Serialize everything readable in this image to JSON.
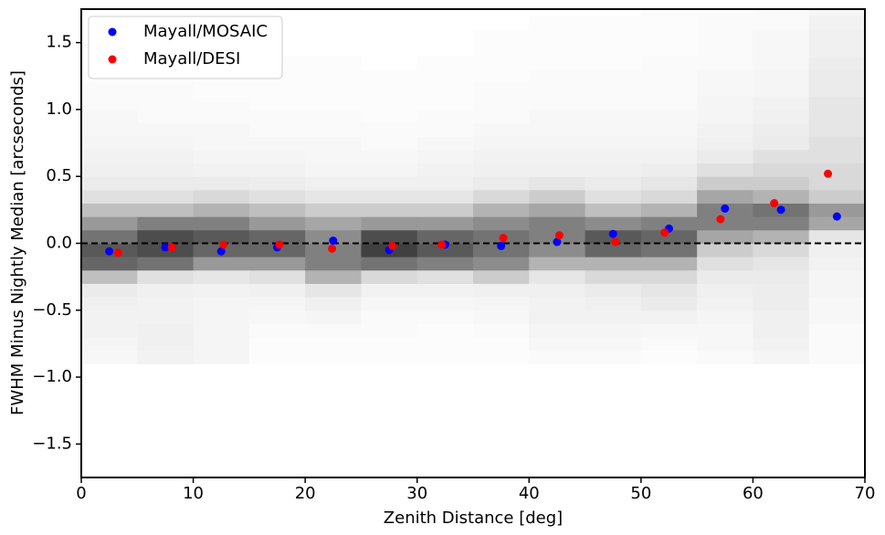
{
  "chart_data": {
    "type": "scatter",
    "xlabel": "Zenith Distance [deg]",
    "ylabel": "FWHM Minus Nightly Median [arcseconds]",
    "xlim": [
      0,
      70
    ],
    "ylim": [
      -1.75,
      1.75
    ],
    "xticks": [
      0,
      10,
      20,
      30,
      40,
      50,
      60,
      70
    ],
    "yticks": [
      {
        "value": -1.5,
        "label": "−1.5"
      },
      {
        "value": -1.0,
        "label": "−1.0"
      },
      {
        "value": -0.5,
        "label": "−0.5"
      },
      {
        "value": 0,
        "label": "0.0"
      },
      {
        "value": 0.5,
        "label": "0.5"
      },
      {
        "value": 1.0,
        "label": "1.0"
      },
      {
        "value": 1.5,
        "label": "1.5"
      }
    ],
    "legend": "upper left",
    "reference_line": 0,
    "series": [
      {
        "name": "Mayall/MOSAIC",
        "color": "#0000ff",
        "x": [
          2.5,
          7.5,
          12.5,
          17.5,
          22.5,
          27.5,
          32.5,
          37.5,
          42.5,
          47.5,
          52.5,
          57.5,
          62.5,
          67.5
        ],
        "values": [
          -0.06,
          -0.03,
          -0.06,
          -0.03,
          0.02,
          -0.05,
          -0.01,
          -0.02,
          0.01,
          0.07,
          0.11,
          0.26,
          0.25,
          0.2
        ]
      },
      {
        "name": "Mayall/DESI",
        "color": "#ff0000",
        "x": [
          3.3,
          8.1,
          12.7,
          17.7,
          22.4,
          27.8,
          32.2,
          37.7,
          42.7,
          47.7,
          52.1,
          57.1,
          61.9,
          66.7
        ],
        "values": [
          -0.07,
          -0.03,
          -0.01,
          -0.01,
          -0.04,
          -0.02,
          -0.01,
          0.04,
          0.06,
          0.01,
          0.08,
          0.18,
          0.3,
          0.52
        ]
      }
    ],
    "heatmap": {
      "xbins": [
        0,
        5,
        10,
        15,
        20,
        25,
        30,
        35,
        40,
        45,
        50,
        55,
        60,
        65,
        70
      ],
      "ybins": [
        -0.9,
        -0.8,
        -0.7,
        -0.6,
        -0.5,
        -0.4,
        -0.3,
        -0.2,
        -0.1,
        0,
        0.1,
        0.2,
        0.3,
        0.4,
        0.5,
        0.6,
        0.7,
        0.8,
        0.9,
        1.0,
        1.1,
        1.2,
        1.3,
        1.4,
        1.5,
        1.6,
        1.7,
        1.8
      ],
      "values": [
        [
          0.03,
          0.04,
          0.05,
          0.05,
          0.06,
          0.08,
          0.25,
          0.6,
          0.65,
          0.55,
          0.4,
          0.25,
          0.12,
          0.08,
          0.06,
          0.05,
          0.04,
          0.03,
          0.03,
          0.02,
          0.02,
          0.01,
          0.01,
          0.01,
          0,
          0,
          0
        ],
        [
          0.05,
          0.06,
          0.06,
          0.05,
          0.05,
          0.06,
          0.12,
          0.55,
          0.7,
          0.7,
          0.5,
          0.25,
          0.12,
          0.08,
          0.06,
          0.05,
          0.04,
          0.03,
          0.02,
          0.02,
          0.02,
          0.01,
          0.01,
          0.01,
          0,
          0,
          0
        ],
        [
          0.04,
          0.04,
          0.04,
          0.04,
          0.04,
          0.05,
          0.1,
          0.4,
          0.6,
          0.65,
          0.5,
          0.3,
          0.15,
          0.08,
          0.05,
          0.04,
          0.03,
          0.03,
          0.02,
          0.02,
          0.01,
          0.01,
          0.01,
          0.01,
          0,
          0,
          0
        ],
        [
          0.01,
          0.01,
          0.02,
          0.03,
          0.04,
          0.06,
          0.12,
          0.4,
          0.6,
          0.6,
          0.4,
          0.25,
          0.12,
          0.07,
          0.05,
          0.04,
          0.03,
          0.02,
          0.02,
          0.01,
          0.01,
          0.01,
          0.01,
          0,
          0,
          0,
          0
        ],
        [
          0.01,
          0.01,
          0.02,
          0.04,
          0.06,
          0.1,
          0.3,
          0.5,
          0.5,
          0.45,
          0.35,
          0.2,
          0.1,
          0.06,
          0.04,
          0.03,
          0.03,
          0.02,
          0.02,
          0.01,
          0.01,
          0.01,
          0.01,
          0,
          0,
          0,
          0
        ],
        [
          0.01,
          0.01,
          0.02,
          0.02,
          0.03,
          0.05,
          0.15,
          0.55,
          0.75,
          0.7,
          0.4,
          0.2,
          0.1,
          0.06,
          0.04,
          0.03,
          0.02,
          0.02,
          0.01,
          0.01,
          0.01,
          0.01,
          0,
          0,
          0,
          0,
          0
        ],
        [
          0.01,
          0.01,
          0.01,
          0.02,
          0.03,
          0.05,
          0.12,
          0.5,
          0.65,
          0.6,
          0.4,
          0.2,
          0.1,
          0.06,
          0.05,
          0.04,
          0.03,
          0.02,
          0.02,
          0.01,
          0.01,
          0.01,
          0.01,
          0,
          0,
          0,
          0
        ],
        [
          0.01,
          0.01,
          0.02,
          0.03,
          0.04,
          0.06,
          0.2,
          0.45,
          0.55,
          0.55,
          0.45,
          0.3,
          0.15,
          0.08,
          0.06,
          0.05,
          0.04,
          0.03,
          0.02,
          0.02,
          0.02,
          0.01,
          0.01,
          0.01,
          0.01,
          0,
          0
        ],
        [
          0.02,
          0.03,
          0.04,
          0.05,
          0.05,
          0.06,
          0.1,
          0.3,
          0.45,
          0.5,
          0.5,
          0.35,
          0.2,
          0.1,
          0.06,
          0.05,
          0.04,
          0.03,
          0.03,
          0.02,
          0.02,
          0.02,
          0.01,
          0.01,
          0.01,
          0.01,
          0
        ],
        [
          0.02,
          0.03,
          0.04,
          0.05,
          0.06,
          0.08,
          0.15,
          0.3,
          0.6,
          0.65,
          0.45,
          0.25,
          0.12,
          0.08,
          0.06,
          0.05,
          0.04,
          0.03,
          0.03,
          0.02,
          0.02,
          0.02,
          0.01,
          0.01,
          0.01,
          0.01,
          0
        ],
        [
          0.01,
          0.02,
          0.03,
          0.05,
          0.08,
          0.1,
          0.15,
          0.3,
          0.55,
          0.6,
          0.5,
          0.3,
          0.15,
          0.1,
          0.07,
          0.05,
          0.04,
          0.03,
          0.03,
          0.02,
          0.02,
          0.02,
          0.02,
          0.01,
          0.01,
          0.01,
          0.01
        ],
        [
          0.02,
          0.03,
          0.03,
          0.04,
          0.05,
          0.06,
          0.08,
          0.12,
          0.2,
          0.35,
          0.5,
          0.5,
          0.35,
          0.2,
          0.12,
          0.08,
          0.06,
          0.05,
          0.04,
          0.04,
          0.03,
          0.03,
          0.02,
          0.02,
          0.02,
          0.02,
          0.01
        ],
        [
          0.04,
          0.05,
          0.06,
          0.06,
          0.07,
          0.07,
          0.08,
          0.1,
          0.15,
          0.3,
          0.5,
          0.55,
          0.3,
          0.2,
          0.15,
          0.12,
          0.08,
          0.07,
          0.06,
          0.05,
          0.04,
          0.04,
          0.03,
          0.03,
          0.03,
          0.02,
          0.02
        ],
        [
          0.02,
          0.02,
          0.02,
          0.03,
          0.03,
          0.04,
          0.04,
          0.05,
          0.06,
          0.1,
          0.35,
          0.4,
          0.2,
          0.15,
          0.15,
          0.12,
          0.12,
          0.1,
          0.1,
          0.1,
          0.08,
          0.08,
          0.07,
          0.06,
          0.06,
          0.05,
          0.04
        ]
      ]
    }
  }
}
